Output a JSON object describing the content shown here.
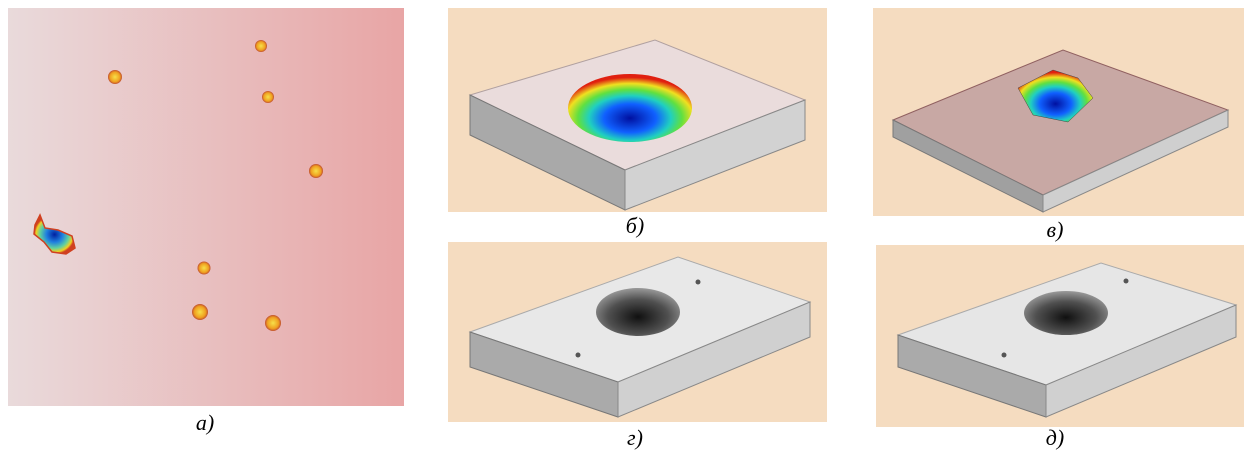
{
  "panels": [
    {
      "caption": "а)"
    },
    {
      "caption": "б)"
    },
    {
      "caption": "в)"
    },
    {
      "caption": "г)"
    },
    {
      "caption": "д)"
    }
  ]
}
